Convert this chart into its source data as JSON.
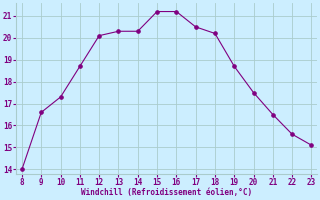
{
  "x": [
    8,
    9,
    10,
    11,
    12,
    13,
    14,
    15,
    16,
    17,
    18,
    19,
    20,
    21,
    22,
    23
  ],
  "y": [
    14.0,
    16.6,
    17.3,
    18.7,
    20.1,
    20.3,
    20.3,
    21.2,
    21.2,
    20.5,
    20.2,
    18.7,
    17.5,
    16.5,
    15.6,
    15.1
  ],
  "xlabel": "Windchill (Refroidissement éolien,°C)",
  "ylim": [
    13.8,
    21.6
  ],
  "xlim": [
    7.7,
    23.3
  ],
  "yticks": [
    14,
    15,
    16,
    17,
    18,
    19,
    20,
    21
  ],
  "xticks": [
    8,
    9,
    10,
    11,
    12,
    13,
    14,
    15,
    16,
    17,
    18,
    19,
    20,
    21,
    22,
    23
  ],
  "line_color": "#800080",
  "marker": "o",
  "bg_color": "#cceeff",
  "grid_color": "#aacccc"
}
